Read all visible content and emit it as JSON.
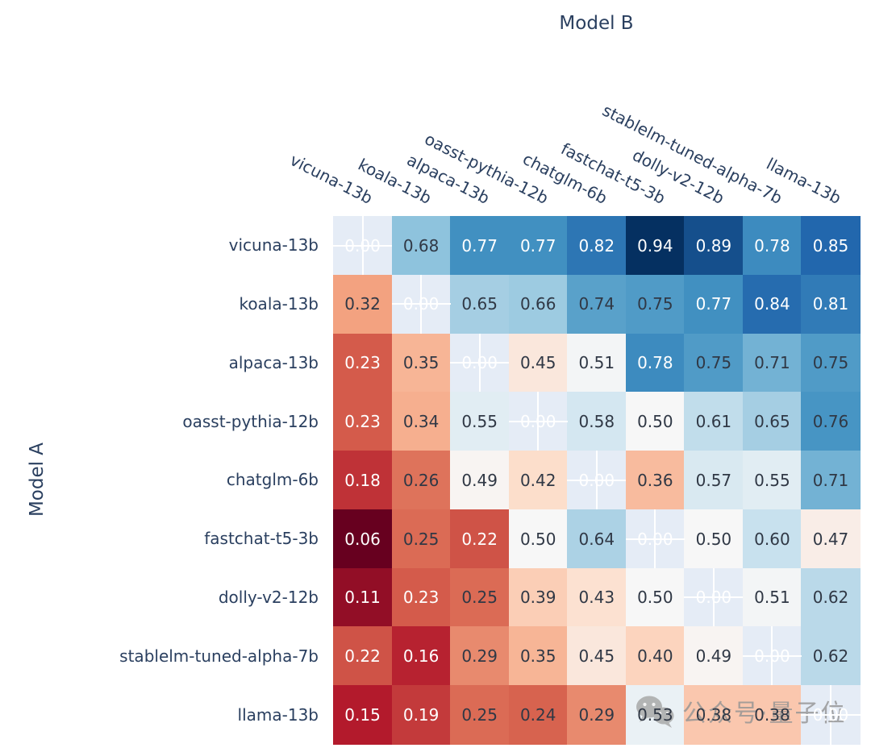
{
  "chart_data": {
    "type": "heatmap",
    "title": "",
    "xlabel": "Model B",
    "ylabel": "Model A",
    "models": [
      "vicuna-13b",
      "koala-13b",
      "alpaca-13b",
      "oasst-pythia-12b",
      "chatglm-6b",
      "fastchat-t5-3b",
      "dolly-v2-12b",
      "stablelm-tuned-alpha-7b",
      "llama-13b"
    ],
    "matrix": [
      [
        0.0,
        0.68,
        0.77,
        0.77,
        0.82,
        0.94,
        0.89,
        0.78,
        0.85
      ],
      [
        0.32,
        0.0,
        0.65,
        0.66,
        0.74,
        0.75,
        0.77,
        0.84,
        0.81
      ],
      [
        0.23,
        0.35,
        0.0,
        0.45,
        0.51,
        0.78,
        0.75,
        0.71,
        0.75
      ],
      [
        0.23,
        0.34,
        0.55,
        0.0,
        0.58,
        0.5,
        0.61,
        0.65,
        0.76
      ],
      [
        0.18,
        0.26,
        0.49,
        0.42,
        0.0,
        0.36,
        0.57,
        0.55,
        0.71
      ],
      [
        0.06,
        0.25,
        0.22,
        0.5,
        0.64,
        0.0,
        0.5,
        0.6,
        0.47
      ],
      [
        0.11,
        0.23,
        0.25,
        0.39,
        0.43,
        0.5,
        0.0,
        0.51,
        0.62
      ],
      [
        0.22,
        0.16,
        0.29,
        0.35,
        0.45,
        0.4,
        0.49,
        0.0,
        0.62
      ],
      [
        0.15,
        0.19,
        0.25,
        0.24,
        0.29,
        0.53,
        0.38,
        0.38,
        0.0
      ]
    ],
    "diagonal_masked": true,
    "diagonal_label": "0.00",
    "colorscale": "RdBu",
    "zmin": 0.06,
    "zmax": 0.94,
    "grid": "white crosshair gridlines visible through masked diagonal cells",
    "legend_position": "none"
  },
  "colors": {
    "accent_label": "#2a3f5f",
    "nan_cell_background": "#e5ecf6",
    "cell_text_dark": "#303845",
    "cell_text_light": "#ffffff",
    "watermark_gray": "#949494",
    "rdbu_stops": [
      "#67001f",
      "#b2182b",
      "#d6604d",
      "#f4a582",
      "#fddbc7",
      "#f7f7f7",
      "#d1e5f0",
      "#92c5de",
      "#4393c3",
      "#2166ac",
      "#053061"
    ]
  },
  "watermark": {
    "icon": "wechat-icon",
    "text": "公众号·量子位"
  }
}
